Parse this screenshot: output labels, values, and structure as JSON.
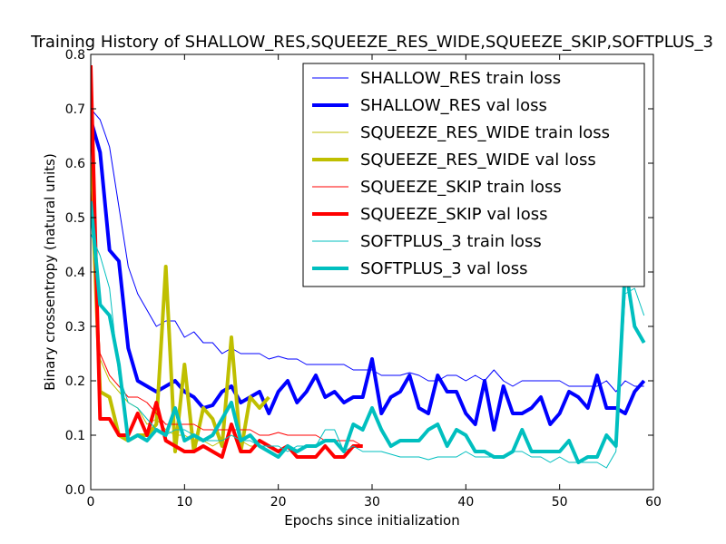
{
  "chart_data": {
    "type": "line",
    "title": "Training History of SHALLOW_RES,SQUEEZE_RES_WIDE,SQUEEZE_SKIP,SOFTPLUS_3",
    "xlabel": "Epochs since initialization",
    "ylabel": "Binary crossentropy (natural units)",
    "xlim": [
      0,
      60
    ],
    "ylim": [
      0.0,
      0.8
    ],
    "xticks": [
      "0",
      "10",
      "20",
      "30",
      "40",
      "50",
      "60"
    ],
    "yticks": [
      "0.0",
      "0.1",
      "0.2",
      "0.3",
      "0.4",
      "0.5",
      "0.6",
      "0.7",
      "0.8"
    ],
    "grid": false,
    "legend_position": "upper-right",
    "series": [
      {
        "name": "SHALLOW_RES train loss",
        "color": "#0000ff",
        "style": "thin",
        "x": [
          0,
          1,
          2,
          3,
          4,
          5,
          6,
          7,
          8,
          9,
          10,
          11,
          12,
          13,
          14,
          15,
          16,
          17,
          18,
          19,
          20,
          21,
          22,
          23,
          24,
          25,
          26,
          27,
          28,
          29,
          30,
          31,
          32,
          33,
          34,
          35,
          36,
          37,
          38,
          39,
          40,
          41,
          42,
          43,
          44,
          45,
          46,
          47,
          48,
          49,
          50,
          51,
          52,
          53,
          54,
          55,
          56,
          57,
          58,
          59
        ],
        "y": [
          0.7,
          0.68,
          0.63,
          0.52,
          0.41,
          0.36,
          0.33,
          0.3,
          0.31,
          0.31,
          0.28,
          0.29,
          0.27,
          0.27,
          0.25,
          0.26,
          0.25,
          0.25,
          0.25,
          0.24,
          0.245,
          0.24,
          0.24,
          0.23,
          0.23,
          0.23,
          0.23,
          0.23,
          0.22,
          0.22,
          0.22,
          0.21,
          0.21,
          0.21,
          0.215,
          0.21,
          0.2,
          0.2,
          0.21,
          0.21,
          0.2,
          0.21,
          0.2,
          0.22,
          0.2,
          0.19,
          0.2,
          0.2,
          0.2,
          0.2,
          0.2,
          0.19,
          0.19,
          0.19,
          0.19,
          0.2,
          0.18,
          0.2,
          0.19,
          0.19
        ]
      },
      {
        "name": "SHALLOW_RES val loss",
        "color": "#0000ff",
        "style": "thick",
        "x": [
          0,
          1,
          2,
          3,
          4,
          5,
          6,
          7,
          8,
          9,
          10,
          11,
          12,
          13,
          14,
          15,
          16,
          17,
          18,
          19,
          20,
          21,
          22,
          23,
          24,
          25,
          26,
          27,
          28,
          29,
          30,
          31,
          32,
          33,
          34,
          35,
          36,
          37,
          38,
          39,
          40,
          41,
          42,
          43,
          44,
          45,
          46,
          47,
          48,
          49,
          50,
          51,
          52,
          53,
          54,
          55,
          56,
          57,
          58,
          59
        ],
        "y": [
          0.68,
          0.62,
          0.44,
          0.42,
          0.26,
          0.2,
          0.19,
          0.18,
          0.19,
          0.2,
          0.18,
          0.17,
          0.15,
          0.155,
          0.18,
          0.19,
          0.16,
          0.17,
          0.18,
          0.14,
          0.18,
          0.2,
          0.16,
          0.18,
          0.21,
          0.17,
          0.18,
          0.16,
          0.17,
          0.17,
          0.24,
          0.14,
          0.17,
          0.18,
          0.21,
          0.15,
          0.14,
          0.21,
          0.18,
          0.18,
          0.14,
          0.12,
          0.2,
          0.11,
          0.19,
          0.14,
          0.14,
          0.15,
          0.17,
          0.12,
          0.14,
          0.18,
          0.17,
          0.15,
          0.21,
          0.15,
          0.15,
          0.14,
          0.18,
          0.2
        ]
      },
      {
        "name": "SQUEEZE_RES_WIDE train loss",
        "color": "#bfbf00",
        "style": "thin",
        "x": [
          0,
          1,
          2,
          3,
          4,
          5,
          6,
          7,
          8,
          9,
          10,
          11,
          12,
          13,
          14,
          15,
          16,
          17,
          18,
          19
        ],
        "y": [
          0.52,
          0.24,
          0.2,
          0.18,
          0.16,
          0.15,
          0.12,
          0.13,
          0.11,
          0.1,
          0.1,
          0.09,
          0.09,
          0.08,
          0.09,
          0.1,
          0.09,
          0.08,
          0.08,
          0.07
        ]
      },
      {
        "name": "SQUEEZE_RES_WIDE val loss",
        "color": "#bfbf00",
        "style": "thick",
        "x": [
          0,
          1,
          2,
          3,
          4,
          5,
          6,
          7,
          8,
          9,
          10,
          11,
          12,
          13,
          14,
          15,
          16,
          17,
          18,
          19
        ],
        "y": [
          0.6,
          0.18,
          0.17,
          0.1,
          0.09,
          0.1,
          0.1,
          0.12,
          0.41,
          0.07,
          0.23,
          0.07,
          0.15,
          0.13,
          0.08,
          0.28,
          0.07,
          0.17,
          0.15,
          0.17
        ]
      },
      {
        "name": "SQUEEZE_SKIP train loss",
        "color": "#ff0000",
        "style": "thin",
        "x": [
          0,
          1,
          2,
          3,
          4,
          5,
          6,
          7,
          8,
          9,
          10,
          11,
          12,
          13,
          14,
          15,
          16,
          17,
          18,
          19,
          20,
          21,
          22,
          23,
          24,
          25,
          26,
          27,
          28,
          29
        ],
        "y": [
          0.55,
          0.25,
          0.21,
          0.19,
          0.17,
          0.17,
          0.16,
          0.14,
          0.12,
          0.12,
          0.12,
          0.12,
          0.11,
          0.11,
          0.11,
          0.11,
          0.11,
          0.11,
          0.1,
          0.1,
          0.105,
          0.1,
          0.1,
          0.1,
          0.1,
          0.09,
          0.09,
          0.09,
          0.09,
          0.08
        ]
      },
      {
        "name": "SQUEEZE_SKIP val loss",
        "color": "#ff0000",
        "style": "thick",
        "x": [
          0,
          1,
          2,
          3,
          4,
          5,
          6,
          7,
          8,
          9,
          10,
          11,
          12,
          13,
          14,
          15,
          16,
          17,
          18,
          19,
          20,
          21,
          22,
          23,
          24,
          25,
          26,
          27,
          28,
          29
        ],
        "y": [
          0.78,
          0.13,
          0.13,
          0.1,
          0.1,
          0.14,
          0.1,
          0.16,
          0.09,
          0.08,
          0.07,
          0.07,
          0.08,
          0.07,
          0.06,
          0.12,
          0.07,
          0.07,
          0.09,
          0.08,
          0.07,
          0.08,
          0.06,
          0.06,
          0.06,
          0.08,
          0.06,
          0.06,
          0.08,
          0.08
        ]
      },
      {
        "name": "SOFTPLUS_3 train loss",
        "color": "#00bfbf",
        "style": "thin",
        "x": [
          0,
          1,
          2,
          3,
          4,
          5,
          6,
          7,
          8,
          9,
          10,
          11,
          12,
          13,
          14,
          15,
          16,
          17,
          18,
          19,
          20,
          21,
          22,
          23,
          24,
          25,
          26,
          27,
          28,
          29,
          30,
          31,
          32,
          33,
          34,
          35,
          36,
          37,
          38,
          39,
          40,
          41,
          42,
          43,
          44,
          45,
          46,
          47,
          48,
          49,
          50,
          51,
          52,
          53,
          54,
          55,
          56,
          57,
          58,
          59
        ],
        "y": [
          0.47,
          0.43,
          0.37,
          0.21,
          0.16,
          0.15,
          0.13,
          0.11,
          0.1,
          0.11,
          0.11,
          0.1,
          0.09,
          0.09,
          0.09,
          0.1,
          0.09,
          0.09,
          0.08,
          0.08,
          0.08,
          0.07,
          0.08,
          0.08,
          0.08,
          0.11,
          0.11,
          0.07,
          0.08,
          0.07,
          0.07,
          0.07,
          0.065,
          0.06,
          0.06,
          0.06,
          0.055,
          0.06,
          0.06,
          0.06,
          0.07,
          0.06,
          0.06,
          0.06,
          0.06,
          0.07,
          0.07,
          0.06,
          0.06,
          0.05,
          0.06,
          0.05,
          0.05,
          0.05,
          0.05,
          0.04,
          0.07,
          0.36,
          0.37,
          0.32
        ]
      },
      {
        "name": "SOFTPLUS_3 val loss",
        "color": "#00bfbf",
        "style": "thick",
        "x": [
          0,
          1,
          2,
          3,
          4,
          5,
          6,
          7,
          8,
          9,
          10,
          11,
          12,
          13,
          14,
          15,
          16,
          17,
          18,
          19,
          20,
          21,
          22,
          23,
          24,
          25,
          26,
          27,
          28,
          29,
          30,
          31,
          32,
          33,
          34,
          35,
          36,
          37,
          38,
          39,
          40,
          41,
          42,
          43,
          44,
          45,
          46,
          47,
          48,
          49,
          50,
          51,
          52,
          53,
          54,
          55,
          56,
          57,
          58,
          59
        ],
        "y": [
          0.53,
          0.34,
          0.32,
          0.23,
          0.09,
          0.1,
          0.09,
          0.11,
          0.1,
          0.15,
          0.09,
          0.1,
          0.09,
          0.1,
          0.13,
          0.16,
          0.09,
          0.1,
          0.08,
          0.07,
          0.06,
          0.08,
          0.07,
          0.08,
          0.08,
          0.09,
          0.09,
          0.07,
          0.12,
          0.11,
          0.15,
          0.11,
          0.08,
          0.09,
          0.09,
          0.09,
          0.11,
          0.12,
          0.08,
          0.11,
          0.1,
          0.07,
          0.07,
          0.06,
          0.06,
          0.07,
          0.11,
          0.07,
          0.07,
          0.07,
          0.07,
          0.09,
          0.05,
          0.06,
          0.06,
          0.1,
          0.08,
          0.41,
          0.3,
          0.27
        ]
      }
    ]
  }
}
